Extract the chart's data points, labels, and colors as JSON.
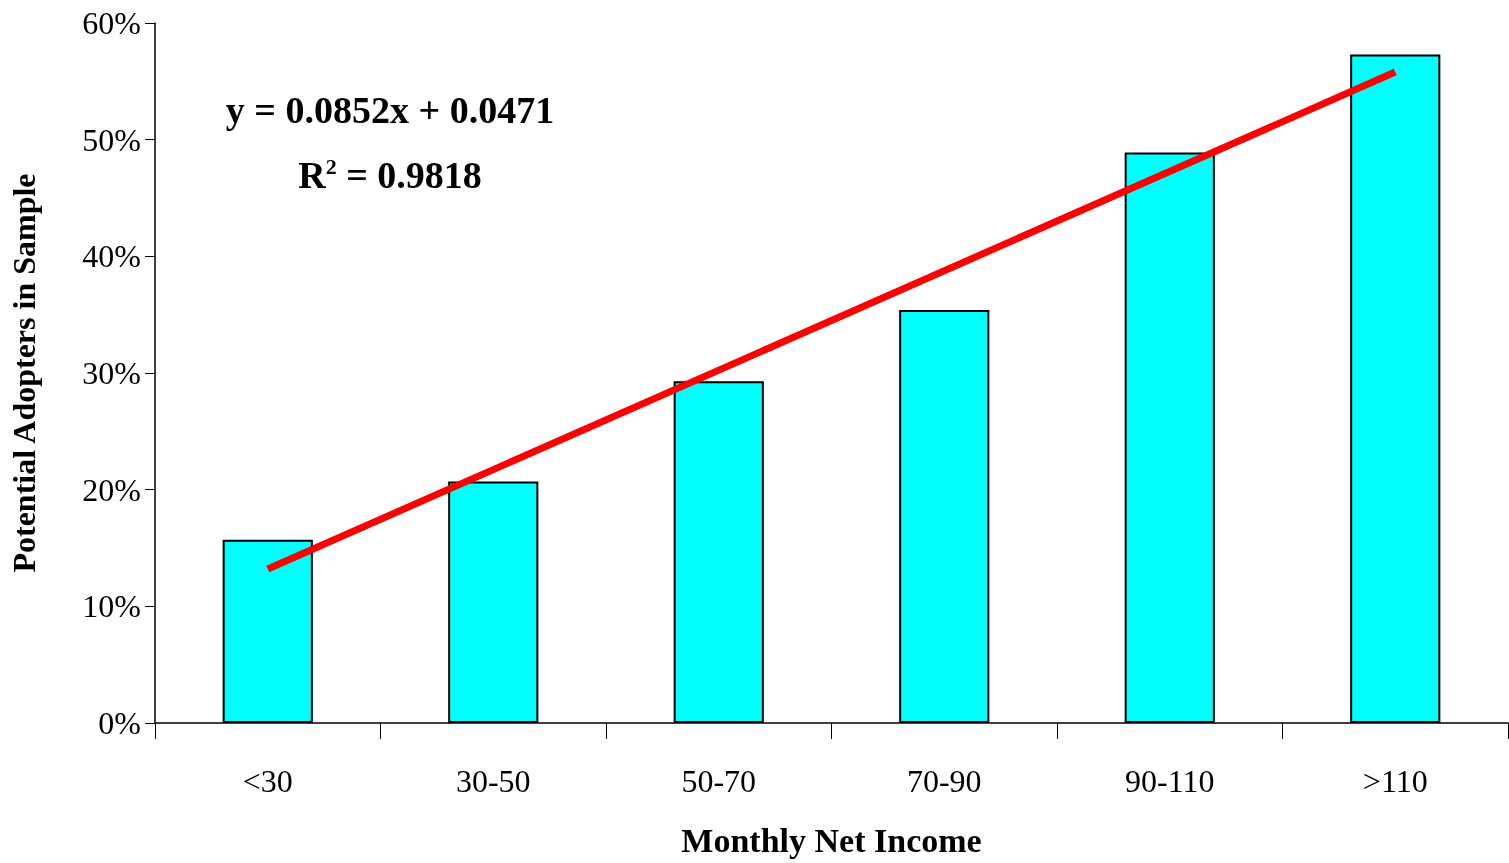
{
  "chart_data": {
    "type": "bar",
    "xlabel": "Monthly Net Income",
    "ylabel": "Potential Adopters in Sample",
    "categories": [
      "<30",
      "30-50",
      "50-70",
      "70-90",
      "90-110",
      ">110"
    ],
    "series": [
      {
        "color": "#00ffff",
        "values": [
          15.7,
          20.7,
          29.3,
          35.4,
          48.9,
          57.3
        ]
      },
      {
        "type": "line",
        "color": "#ff0000",
        "x": [
          "<30",
          ">110"
        ],
        "values": [
          13.2,
          55.8
        ],
        "marker": "none"
      }
    ],
    "ylim": [
      0,
      60
    ],
    "yticks": [
      {
        "value": 0,
        "label": "0%"
      },
      {
        "value": 10,
        "label": "10%"
      },
      {
        "value": 20,
        "label": "20%"
      },
      {
        "value": 30,
        "label": "30%"
      },
      {
        "value": 40,
        "label": "40%"
      },
      {
        "value": 50,
        "label": "50%"
      },
      {
        "value": 60,
        "label": "60%"
      }
    ],
    "annotations": [
      "y = 0.0852x + 0.0471",
      "R$^{2}$ = 0.9818"
    ],
    "grid": false
  }
}
